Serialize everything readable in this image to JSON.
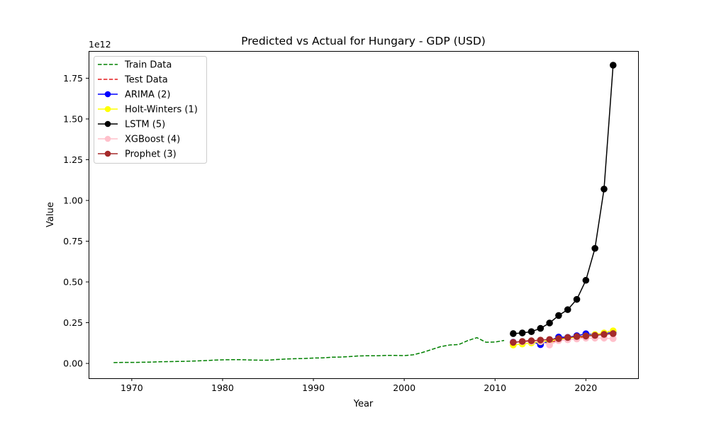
{
  "chart_data": {
    "type": "line",
    "title": "Predicted vs Actual for Hungary - GDP (USD)",
    "xlabel": "Year",
    "ylabel": "Value",
    "y_offset_text": "1e12",
    "xlim": [
      1965.25,
      2025.75
    ],
    "ylim": [
      -0.091,
      1.917
    ],
    "y_unit_multiplier": 1000000000000.0,
    "x_ticks": [
      1970,
      1980,
      1990,
      2000,
      2010,
      2020
    ],
    "y_ticks": [
      0.0,
      0.25,
      0.5,
      0.75,
      1.0,
      1.25,
      1.5,
      1.75
    ],
    "y_tick_labels": [
      "0.00",
      "0.25",
      "0.50",
      "0.75",
      "1.00",
      "1.25",
      "1.50",
      "1.75"
    ],
    "grid": false,
    "legend_position": "upper-left",
    "series": [
      {
        "name": "Train Data",
        "color": "#008000",
        "style": "dashed",
        "marker": false,
        "x": [
          1968,
          1969,
          1970,
          1971,
          1972,
          1973,
          1974,
          1975,
          1976,
          1977,
          1978,
          1979,
          1980,
          1981,
          1982,
          1983,
          1984,
          1985,
          1986,
          1987,
          1988,
          1989,
          1990,
          1991,
          1992,
          1993,
          1994,
          1995,
          1996,
          1997,
          1998,
          1999,
          2000,
          2001,
          2002,
          2003,
          2004,
          2005,
          2006,
          2007,
          2008,
          2009,
          2010,
          2011
        ],
        "values": [
          0.005,
          0.006,
          0.006,
          0.007,
          0.008,
          0.01,
          0.011,
          0.012,
          0.013,
          0.015,
          0.017,
          0.02,
          0.022,
          0.023,
          0.023,
          0.021,
          0.02,
          0.02,
          0.024,
          0.027,
          0.029,
          0.03,
          0.033,
          0.034,
          0.038,
          0.039,
          0.042,
          0.046,
          0.047,
          0.047,
          0.049,
          0.049,
          0.048,
          0.053,
          0.067,
          0.085,
          0.103,
          0.113,
          0.116,
          0.14,
          0.158,
          0.13,
          0.131,
          0.141
        ]
      },
      {
        "name": "Test Data",
        "color": "#e31a1c",
        "style": "dashed",
        "marker": false,
        "x": [
          2012,
          2013,
          2014,
          2015,
          2016,
          2017,
          2018,
          2019,
          2020,
          2021,
          2022,
          2023
        ],
        "values": [
          0.129,
          0.136,
          0.141,
          0.125,
          0.128,
          0.143,
          0.16,
          0.164,
          0.157,
          0.182,
          0.177,
          0.212
        ]
      },
      {
        "name": "ARIMA (2)",
        "color": "#0000ff",
        "style": "solid",
        "marker": true,
        "x": [
          2012,
          2013,
          2014,
          2015,
          2016,
          2017,
          2018,
          2019,
          2020,
          2021,
          2022,
          2023
        ],
        "values": [
          0.131,
          0.133,
          0.136,
          0.115,
          0.14,
          0.162,
          0.16,
          0.17,
          0.182,
          0.175,
          0.185,
          0.19
        ]
      },
      {
        "name": "Holt-Winters (1)",
        "color": "#ffff00",
        "style": "solid",
        "marker": true,
        "x": [
          2012,
          2013,
          2014,
          2015,
          2016,
          2017,
          2018,
          2019,
          2020,
          2021,
          2022,
          2023
        ],
        "values": [
          0.113,
          0.119,
          0.126,
          0.133,
          0.14,
          0.147,
          0.154,
          0.161,
          0.168,
          0.177,
          0.187,
          0.2
        ]
      },
      {
        "name": "LSTM (5)",
        "color": "#000000",
        "style": "solid",
        "marker": true,
        "x": [
          2012,
          2013,
          2014,
          2015,
          2016,
          2017,
          2018,
          2019,
          2020,
          2021,
          2022,
          2023
        ],
        "values": [
          0.183,
          0.187,
          0.195,
          0.215,
          0.248,
          0.294,
          0.33,
          0.393,
          0.51,
          0.706,
          1.07,
          1.83
        ]
      },
      {
        "name": "XGBoost (4)",
        "color": "#ffc0cb",
        "style": "solid",
        "marker": true,
        "x": [
          2012,
          2013,
          2014,
          2015,
          2016,
          2017,
          2018,
          2019,
          2020,
          2021,
          2022,
          2023
        ],
        "values": [
          0.13,
          0.132,
          0.134,
          0.135,
          0.113,
          0.14,
          0.145,
          0.15,
          0.155,
          0.155,
          0.155,
          0.152
        ]
      },
      {
        "name": "Prophet (3)",
        "color": "#a52a2a",
        "style": "solid",
        "marker": true,
        "x": [
          2012,
          2013,
          2014,
          2015,
          2016,
          2017,
          2018,
          2019,
          2020,
          2021,
          2022,
          2023
        ],
        "values": [
          0.129,
          0.135,
          0.139,
          0.143,
          0.147,
          0.152,
          0.159,
          0.165,
          0.168,
          0.172,
          0.178,
          0.183
        ]
      }
    ]
  }
}
